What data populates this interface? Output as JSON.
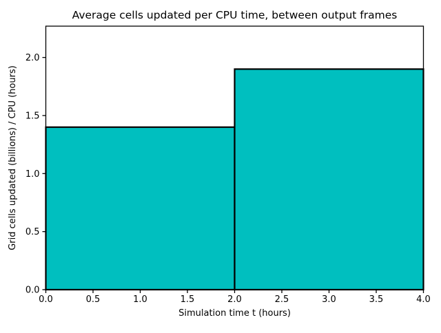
{
  "chart_data": {
    "type": "bar",
    "title": "Average cells updated per CPU time, between output frames",
    "xlabel": "Simulation time t (hours)",
    "ylabel": "Grid cells updated (billions) / CPU (hours)",
    "bins": [
      {
        "x0": 0.0,
        "x1": 2.0,
        "value": 1.4
      },
      {
        "x0": 2.0,
        "x1": 4.0,
        "value": 1.9
      }
    ],
    "xlim": [
      0.0,
      4.0
    ],
    "ylim": [
      0.0,
      2.27
    ],
    "xticks": [
      0.0,
      0.5,
      1.0,
      1.5,
      2.0,
      2.5,
      3.0,
      3.5,
      4.0
    ],
    "yticks": [
      0.0,
      0.5,
      1.0,
      1.5,
      2.0
    ],
    "tick_decimals": 1,
    "bar_fill_color": "#00bfbf",
    "bar_edge_color": "#000000",
    "axis_color": "#000000",
    "background_color": "#ffffff",
    "grid": false,
    "legend": null
  }
}
